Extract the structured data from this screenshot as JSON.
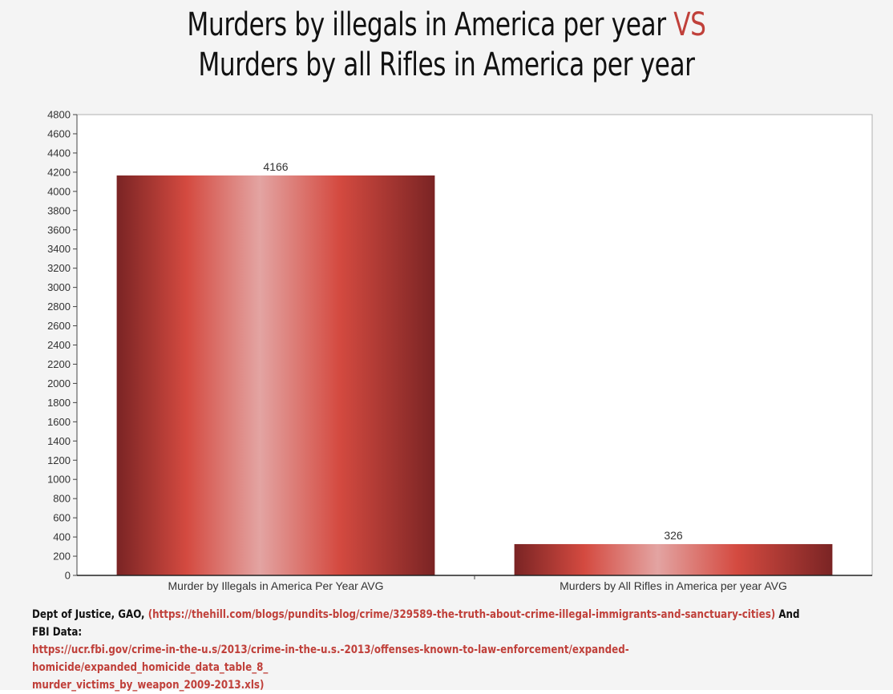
{
  "title": {
    "line1": "Murders by illegals in America per year",
    "vs": "VS",
    "line2": "Murders by all Rifles in America per year"
  },
  "colors": {
    "accent": "#c0403a",
    "bar_dark": "#7a2424",
    "bar_mid": "#d44a40",
    "bar_light": "#e09a98"
  },
  "chart_data": {
    "type": "bar",
    "title": "Murders by illegals in America per year VS Murders by all Rifles in America per year",
    "xlabel": "",
    "ylabel": "",
    "categories": [
      "Murder by Illegals in America Per Year AVG",
      "Murders by All Rifles in America per year AVG"
    ],
    "values": [
      4166,
      326
    ],
    "value_labels": [
      "4166",
      "326"
    ],
    "ylim": [
      0,
      4800
    ],
    "yticks": [
      0,
      200,
      400,
      600,
      800,
      1000,
      1200,
      1400,
      1600,
      1800,
      2000,
      2200,
      2400,
      2600,
      2800,
      3000,
      3200,
      3400,
      3600,
      3800,
      4000,
      4200,
      4400,
      4600,
      4800
    ],
    "grid": false,
    "legend": "none"
  },
  "footnote": {
    "prefix": "Dept of Justice, GAO, ",
    "link1": "(https://thehill.com/blogs/pundits-blog/crime/329589-the-truth-about-crime-illegal-immigrants-and-sanctuary-cities)",
    "middle": " And FBI Data:",
    "link2_line1": "https://ucr.fbi.gov/crime-in-the-u.s/2013/crime-in-the-u.s.-2013/offenses-known-to-law-enforcement/expanded-homicide/expanded_homicide_data_table_8_",
    "link2_line2": "murder_victims_by_weapon_2009-2013.xls)"
  }
}
